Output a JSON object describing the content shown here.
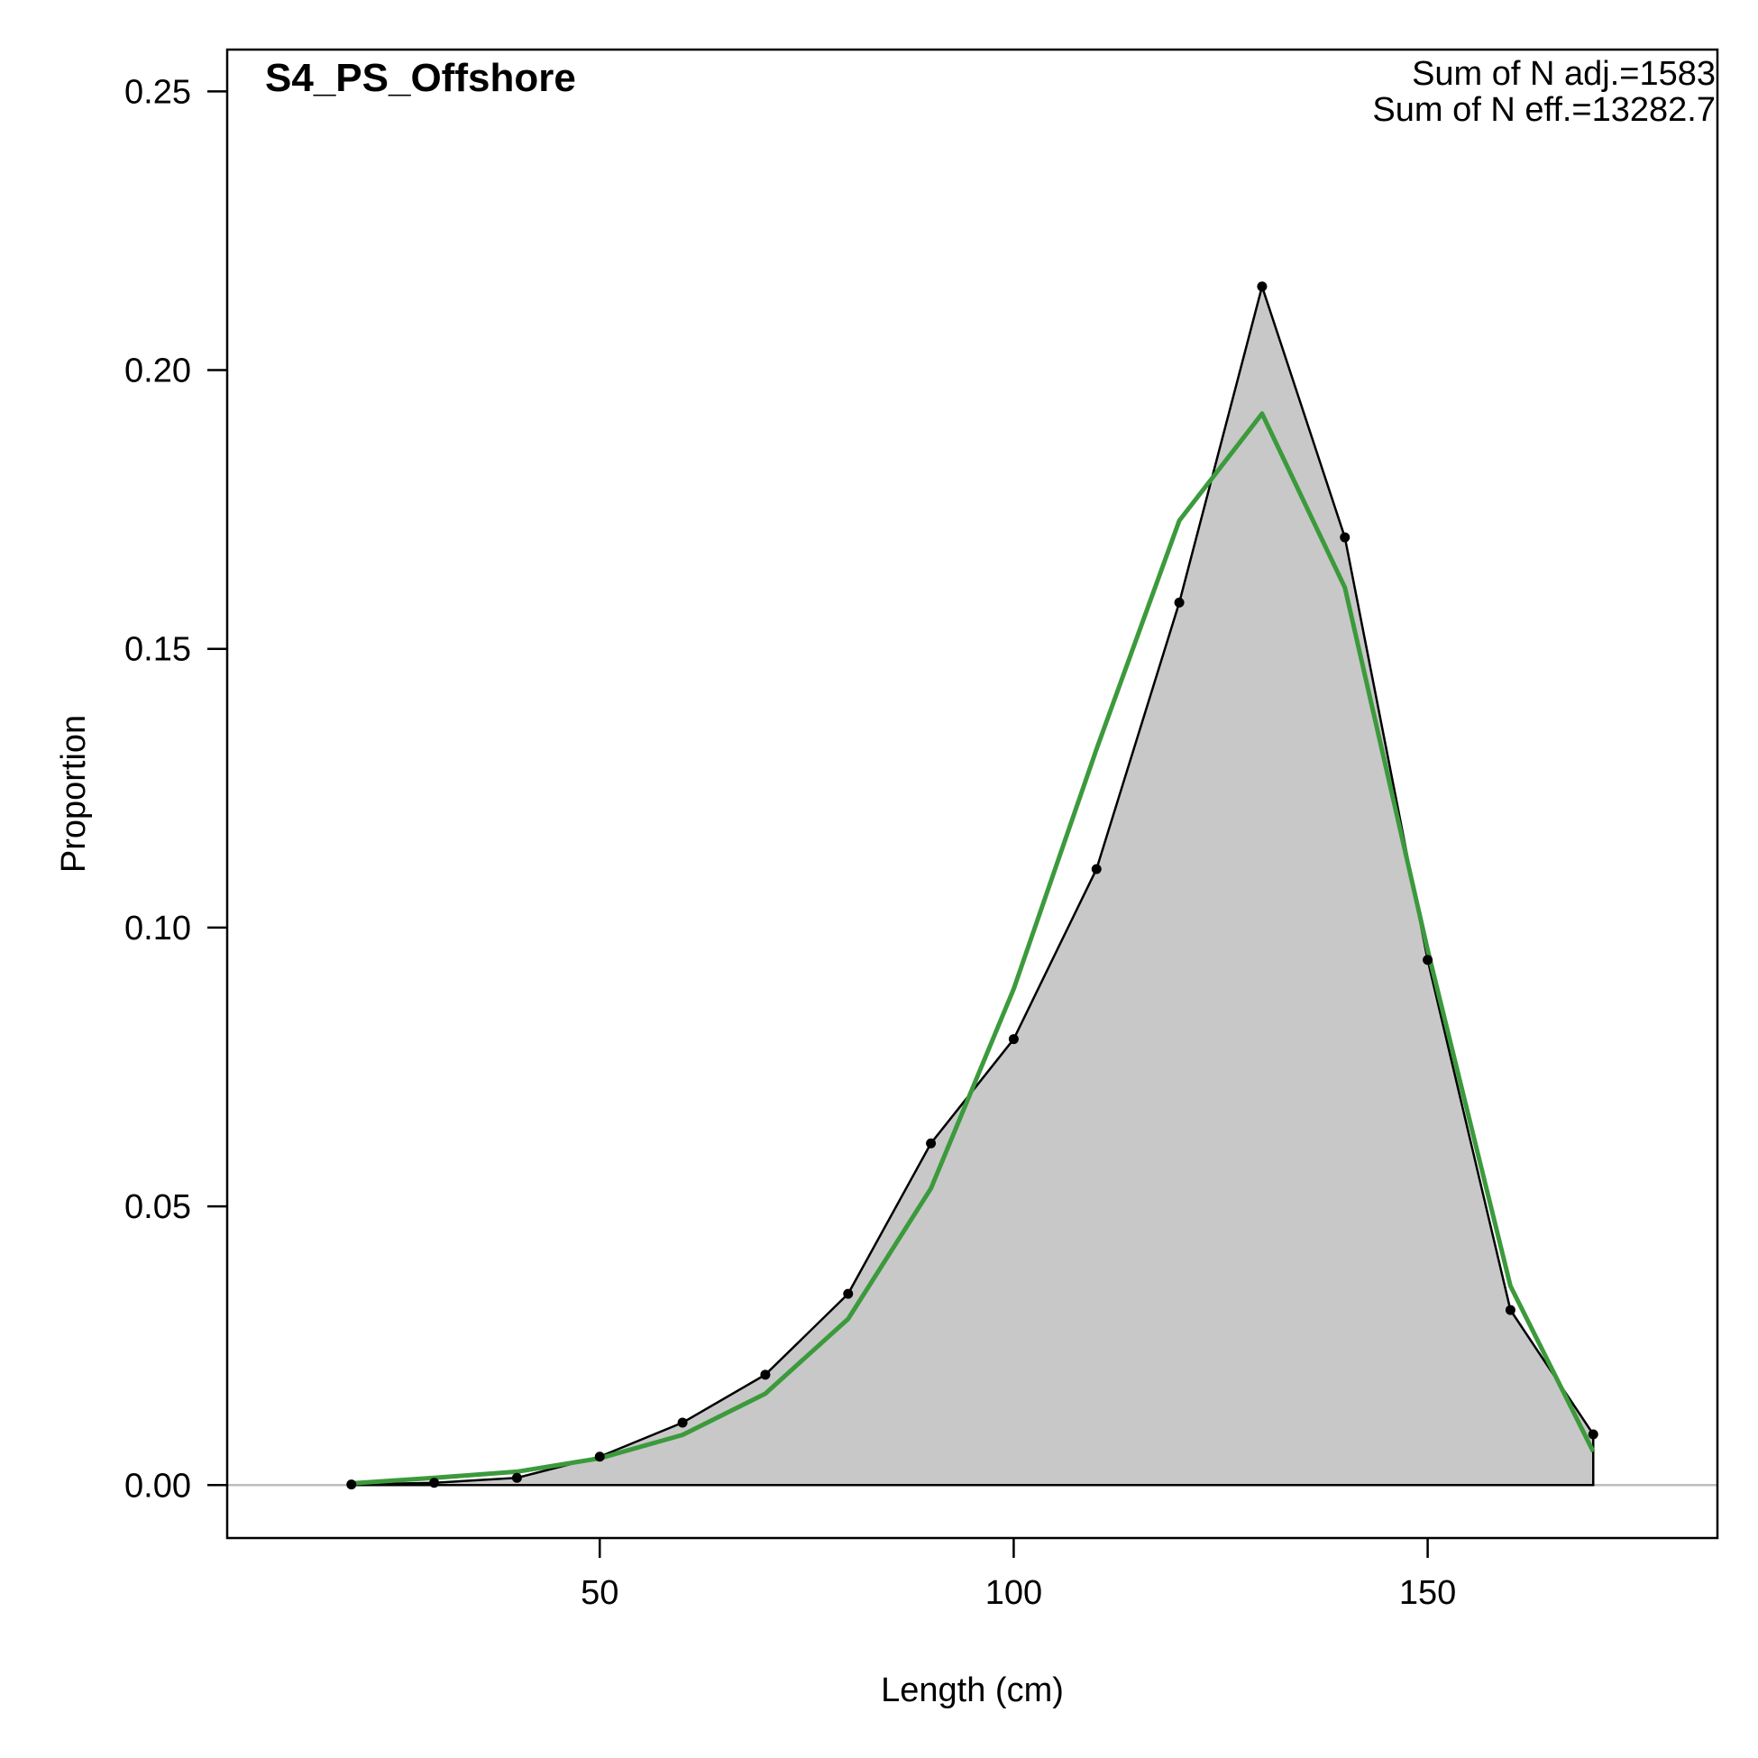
{
  "chart_data": {
    "type": "area",
    "title": "S4_PS_Offshore",
    "xlabel": "Length (cm)",
    "ylabel": "Proportion",
    "xlim": [
      5,
      185
    ],
    "ylim": [
      -0.0095,
      0.2575
    ],
    "xticks": [
      50,
      100,
      150
    ],
    "yticks": [
      0.0,
      0.05,
      0.1,
      0.15,
      0.2,
      0.25
    ],
    "xtick_labels": [
      "50",
      "100",
      "150"
    ],
    "ytick_labels": [
      "0.00",
      "0.05",
      "0.10",
      "0.15",
      "0.20",
      "0.25"
    ],
    "annotations": [
      "Sum of N adj.=1583",
      "Sum of N eff.=13282.7"
    ],
    "colors": {
      "observed_fill": "#c8c8c8",
      "observed_line": "#000000",
      "expected_line": "#3c9a3c",
      "zero_line": "#bdbdbd"
    },
    "x": [
      20,
      30,
      40,
      50,
      60,
      70,
      80,
      90,
      100,
      110,
      120,
      130,
      140,
      150,
      160,
      170
    ],
    "series": [
      {
        "values": [
          0.0001,
          0.0004,
          0.0013,
          0.0051,
          0.0112,
          0.0198,
          0.0343,
          0.0613,
          0.08,
          0.1105,
          0.1583,
          0.215,
          0.17,
          0.0942,
          0.0314,
          0.0091
        ]
      },
      {
        "values": [
          0.0003,
          0.0013,
          0.0024,
          0.0048,
          0.009,
          0.0164,
          0.0298,
          0.0532,
          0.089,
          0.132,
          0.173,
          0.1922,
          0.161,
          0.096,
          0.0357,
          0.006
        ]
      }
    ]
  }
}
